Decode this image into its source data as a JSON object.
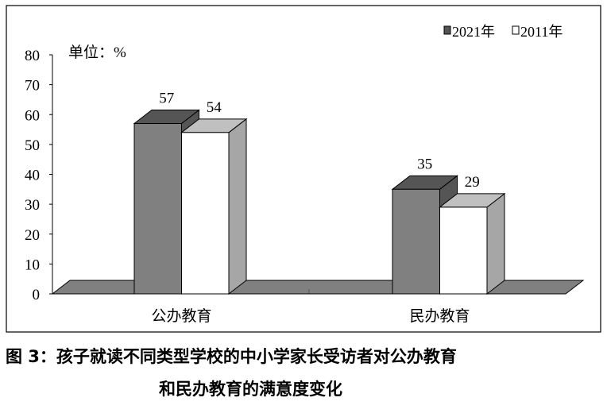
{
  "chart_data": {
    "type": "bar",
    "style": "3d-clustered-column",
    "categories": [
      "公办教育",
      "民办教育"
    ],
    "series": [
      {
        "name": "2021年",
        "values": [
          57,
          35
        ],
        "color": "#808080"
      },
      {
        "name": "2011年",
        "values": [
          54,
          29
        ],
        "color": "#ffffff"
      }
    ],
    "unit_label": "单位：%",
    "ylim": [
      0,
      80
    ],
    "yticks": [
      0,
      10,
      20,
      30,
      40,
      50,
      60,
      70,
      80
    ],
    "data_labels": true,
    "legend_placement": "top-right",
    "grid": false
  },
  "caption": {
    "line1": "图 3：孩子就读不同类型学校的中小学家长受访者对公办教育",
    "line2": "和民办教育的满意度变化"
  }
}
